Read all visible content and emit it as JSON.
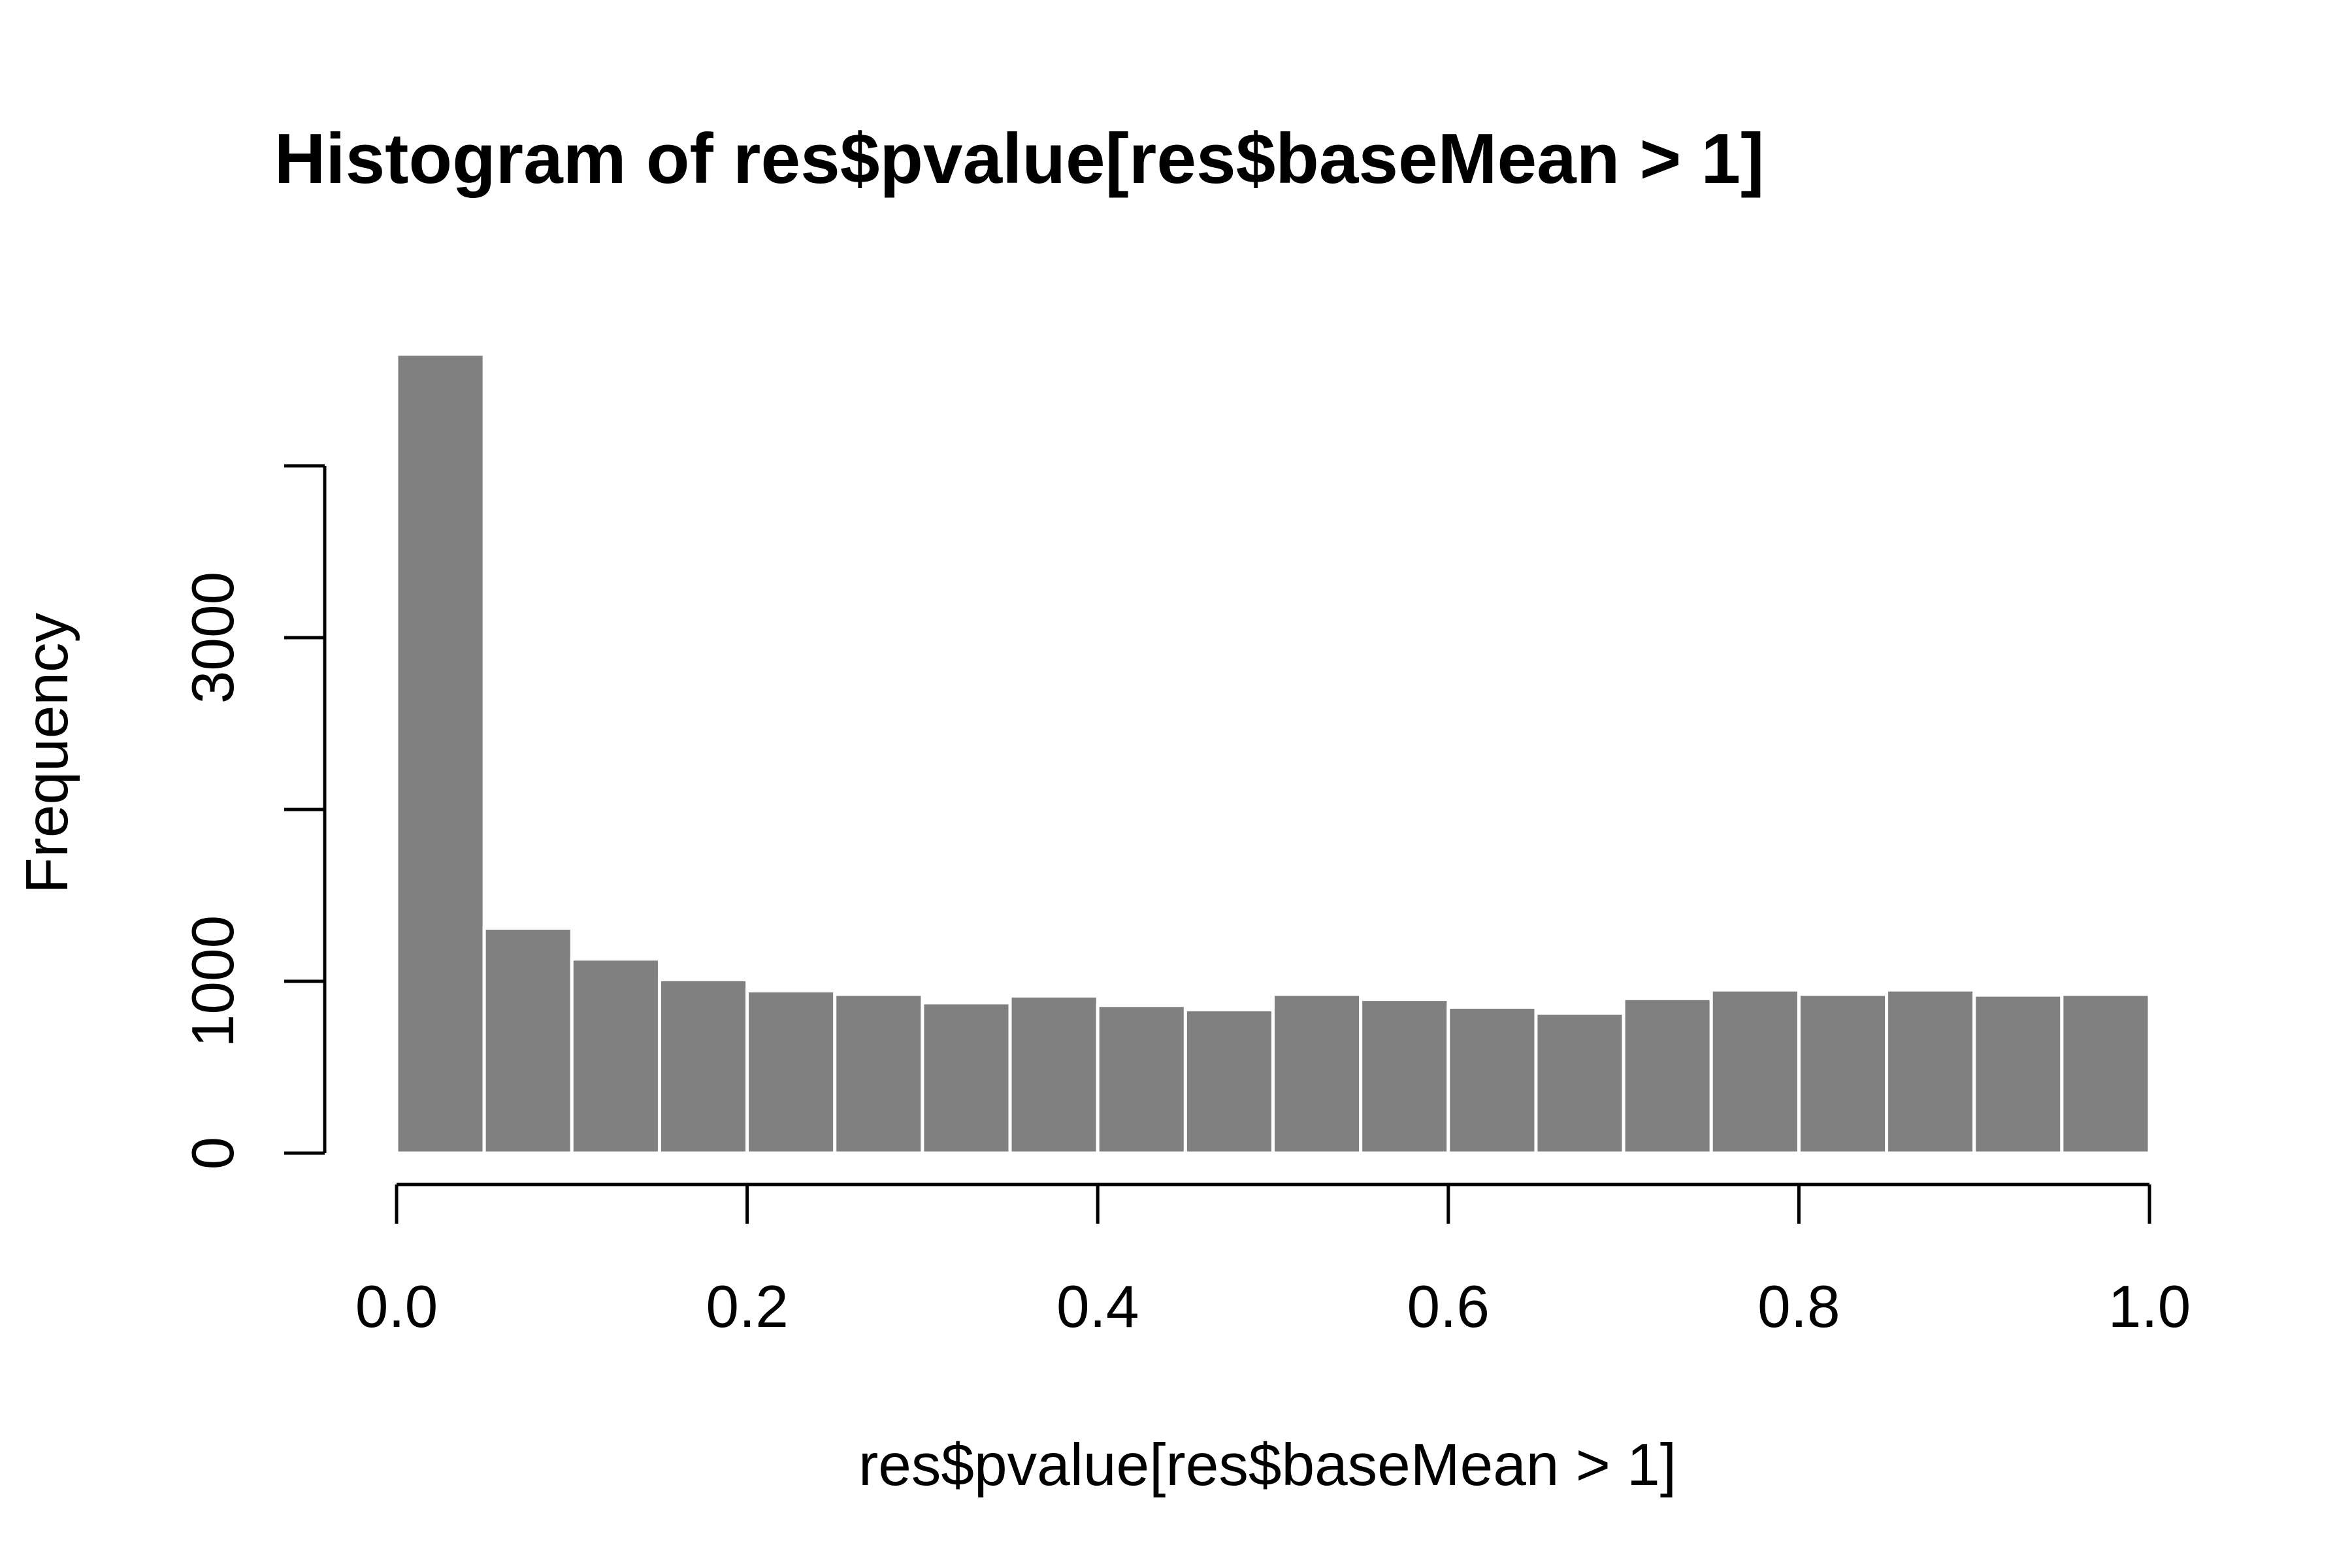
{
  "chart_data": {
    "type": "bar",
    "title": "Histogram of res$pvalue[res$baseMean > 1]",
    "xlabel": "res$pvalue[res$baseMean > 1]",
    "ylabel": "Frequency",
    "xlim": [
      0,
      1
    ],
    "ylim": [
      0,
      4000
    ],
    "x_ticks": [
      0.0,
      0.2,
      0.4,
      0.6,
      0.8,
      1.0
    ],
    "x_tick_labels": [
      "0.0",
      "0.2",
      "0.4",
      "0.6",
      "0.8",
      "1.0"
    ],
    "y_ticks": [
      0,
      1000,
      2000,
      3000,
      4000
    ],
    "y_tick_labels": [
      "0",
      "1000",
      "",
      "3000",
      ""
    ],
    "bin_edges": [
      0.0,
      0.05,
      0.1,
      0.15,
      0.2,
      0.25,
      0.3,
      0.35,
      0.4,
      0.45,
      0.5,
      0.55,
      0.6,
      0.65,
      0.7,
      0.75,
      0.8,
      0.85,
      0.9,
      0.95,
      1.0
    ],
    "values": [
      4650,
      1310,
      1130,
      1010,
      945,
      925,
      875,
      915,
      860,
      835,
      925,
      895,
      850,
      815,
      900,
      950,
      925,
      950,
      920,
      925
    ],
    "bar_color": "#808080",
    "bar_border_color": "#ffffff",
    "grid": false,
    "legend": false
  }
}
